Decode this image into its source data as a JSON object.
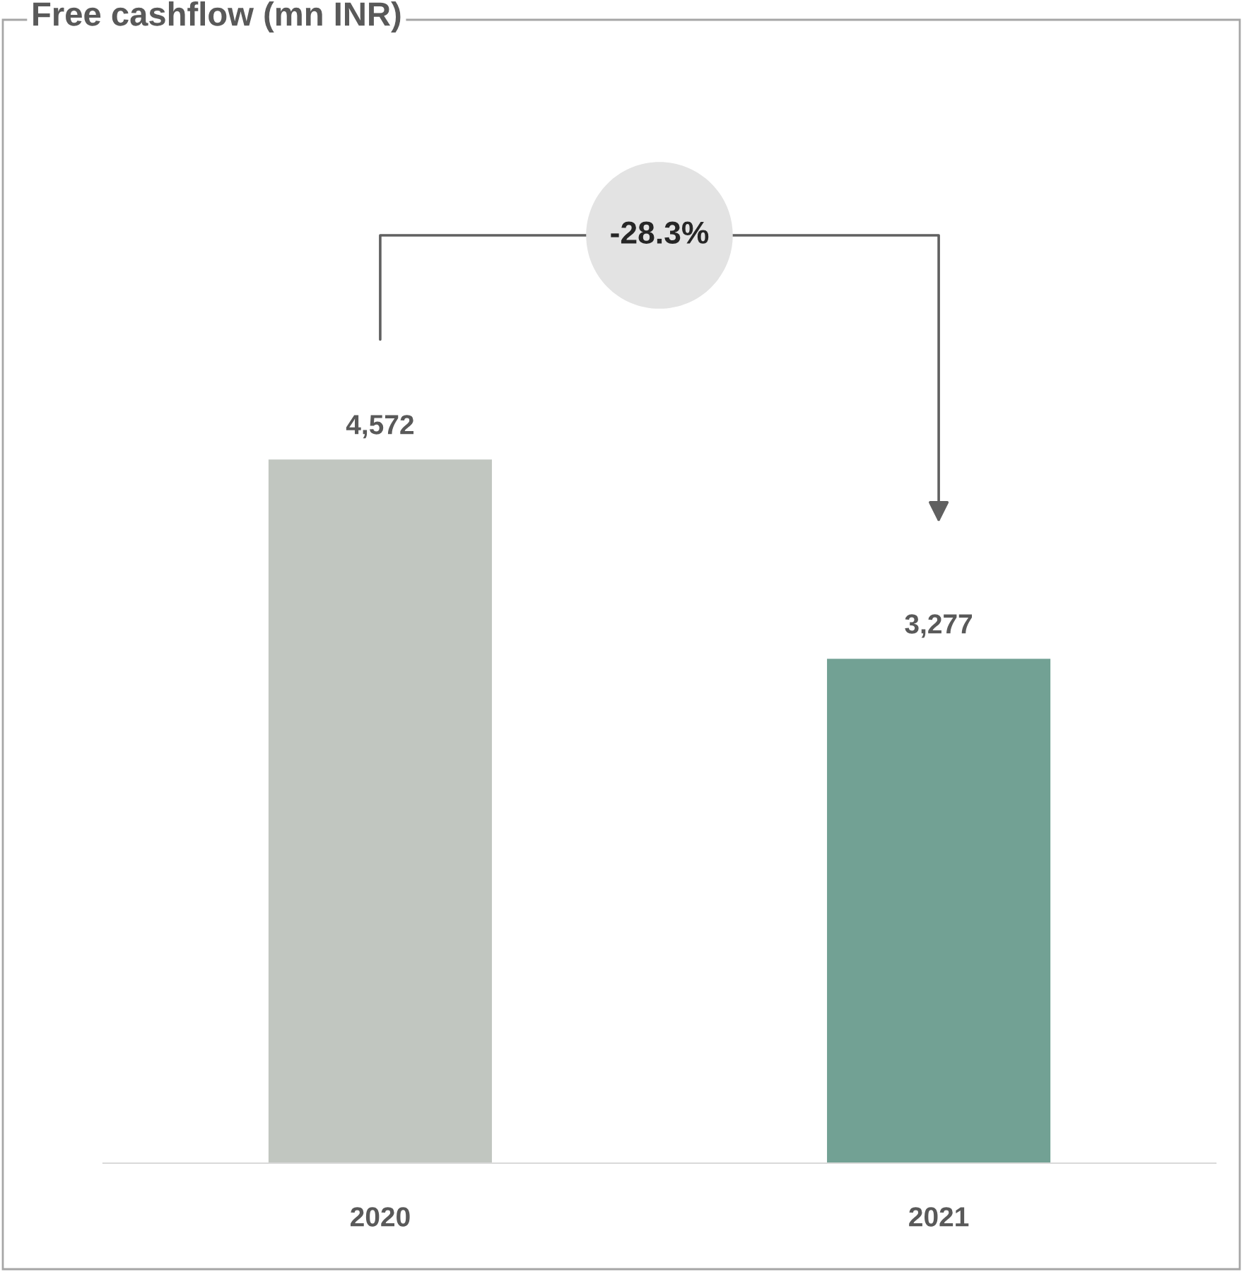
{
  "chart_data": {
    "type": "bar",
    "title": "Free cashflow (mn INR)",
    "categories": [
      "2020",
      "2021"
    ],
    "values": [
      4572,
      3277
    ],
    "colors": [
      "#c1c6c0",
      "#72a194"
    ],
    "value_labels": [
      "4,572",
      "3,277"
    ],
    "grid": false,
    "legend": false,
    "tick_labels": "x",
    "annotations": [
      "-28.3%"
    ]
  }
}
